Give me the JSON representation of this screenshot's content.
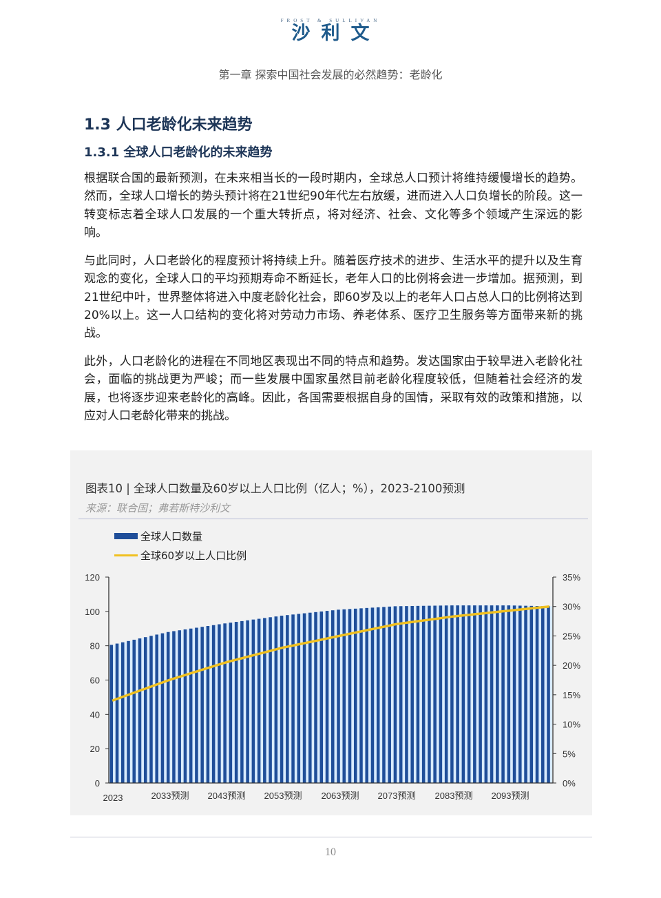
{
  "header": {
    "logo_en": "FROST & SULLIVAN",
    "logo_cn": "沙利文",
    "chapter": "第一章  探索中国社会发展的必然趋势：老龄化"
  },
  "section": {
    "title": "1.3 人口老龄化未来趋势",
    "subtitle": "1.3.1 全球人口老龄化的未来趋势"
  },
  "paragraphs": [
    "根据联合国的最新预测，在未来相当长的一段时期内，全球总人口预计将维持缓慢增长的趋势。然而，全球人口增长的势头预计将在21世纪90年代左右放缓，进而进入人口负增长的阶段。这一转变标志着全球人口发展的一个重大转折点，将对经济、社会、文化等多个领域产生深远的影响。",
    "与此同时，人口老龄化的程度预计将持续上升。随着医疗技术的进步、生活水平的提升以及生育观念的变化，全球人口的平均预期寿命不断延长，老年人口的比例将会进一步增加。据预测，到21世纪中叶，世界整体将进入中度老龄化社会，即60岁及以上的老年人口占总人口的比例将达到20%以上。这一人口结构的变化将对劳动力市场、养老体系、医疗卫生服务等方面带来新的挑战。",
    "此外，人口老龄化的进程在不同地区表现出不同的特点和趋势。发达国家由于较早进入老龄化社会，面临的挑战更为严峻；而一些发展中国家虽然目前老龄化程度较低，但随着社会经济的发展，也将逐步迎来老龄化的高峰。因此，各国需要根据自身的国情，采取有效的政策和措施，以应对人口老龄化带来的挑战。"
  ],
  "figure": {
    "title": "图表10 | 全球人口数量及60岁以上人口比例（亿人；%），2023-2100预测",
    "source": "来源：联合国；弗若斯特沙利文",
    "legend": [
      "全球人口数量",
      "全球60岁以上人口比例"
    ]
  },
  "colors": {
    "bar": "#1f4e99",
    "bar_gap": "#d9ecff",
    "line": "#f0c020",
    "heading": "#1d3557"
  },
  "chart_data": {
    "type": "bar",
    "title": "图表10 | 全球人口数量及60岁以上人口比例（亿人；%），2023-2100预测",
    "xlabel": "",
    "ylabel": "亿人",
    "y2label": "%",
    "ylim": [
      0,
      120
    ],
    "y2lim": [
      0,
      35
    ],
    "yticks": [
      0,
      20,
      40,
      60,
      80,
      100,
      120
    ],
    "y2ticks": [
      "0%",
      "5%",
      "10%",
      "15%",
      "20%",
      "25%",
      "30%",
      "35%"
    ],
    "xtick_labels": [
      "2023",
      "2033预测",
      "2043预测",
      "2053预测",
      "2063预测",
      "2073预测",
      "2083预测",
      "2093预测"
    ],
    "grid": false,
    "legend_position": "top-left",
    "x_start": 2023,
    "x_end": 2100,
    "anchor_years": [
      2023,
      2033,
      2043,
      2053,
      2063,
      2073,
      2083,
      2093,
      2100
    ],
    "series": [
      {
        "name": "全球人口数量",
        "type": "bar",
        "axis": "left",
        "unit": "亿人",
        "anchor_values": [
          80.5,
          88.0,
          93.0,
          97.5,
          101.0,
          103.0,
          103.5,
          103.5,
          103.0
        ]
      },
      {
        "name": "全球60岁以上人口比例",
        "type": "line",
        "axis": "right",
        "unit": "%",
        "anchor_values": [
          14.0,
          17.5,
          20.5,
          23.0,
          25.0,
          27.0,
          28.3,
          29.3,
          30.0
        ]
      }
    ]
  },
  "footer": {
    "page_number": "10"
  }
}
